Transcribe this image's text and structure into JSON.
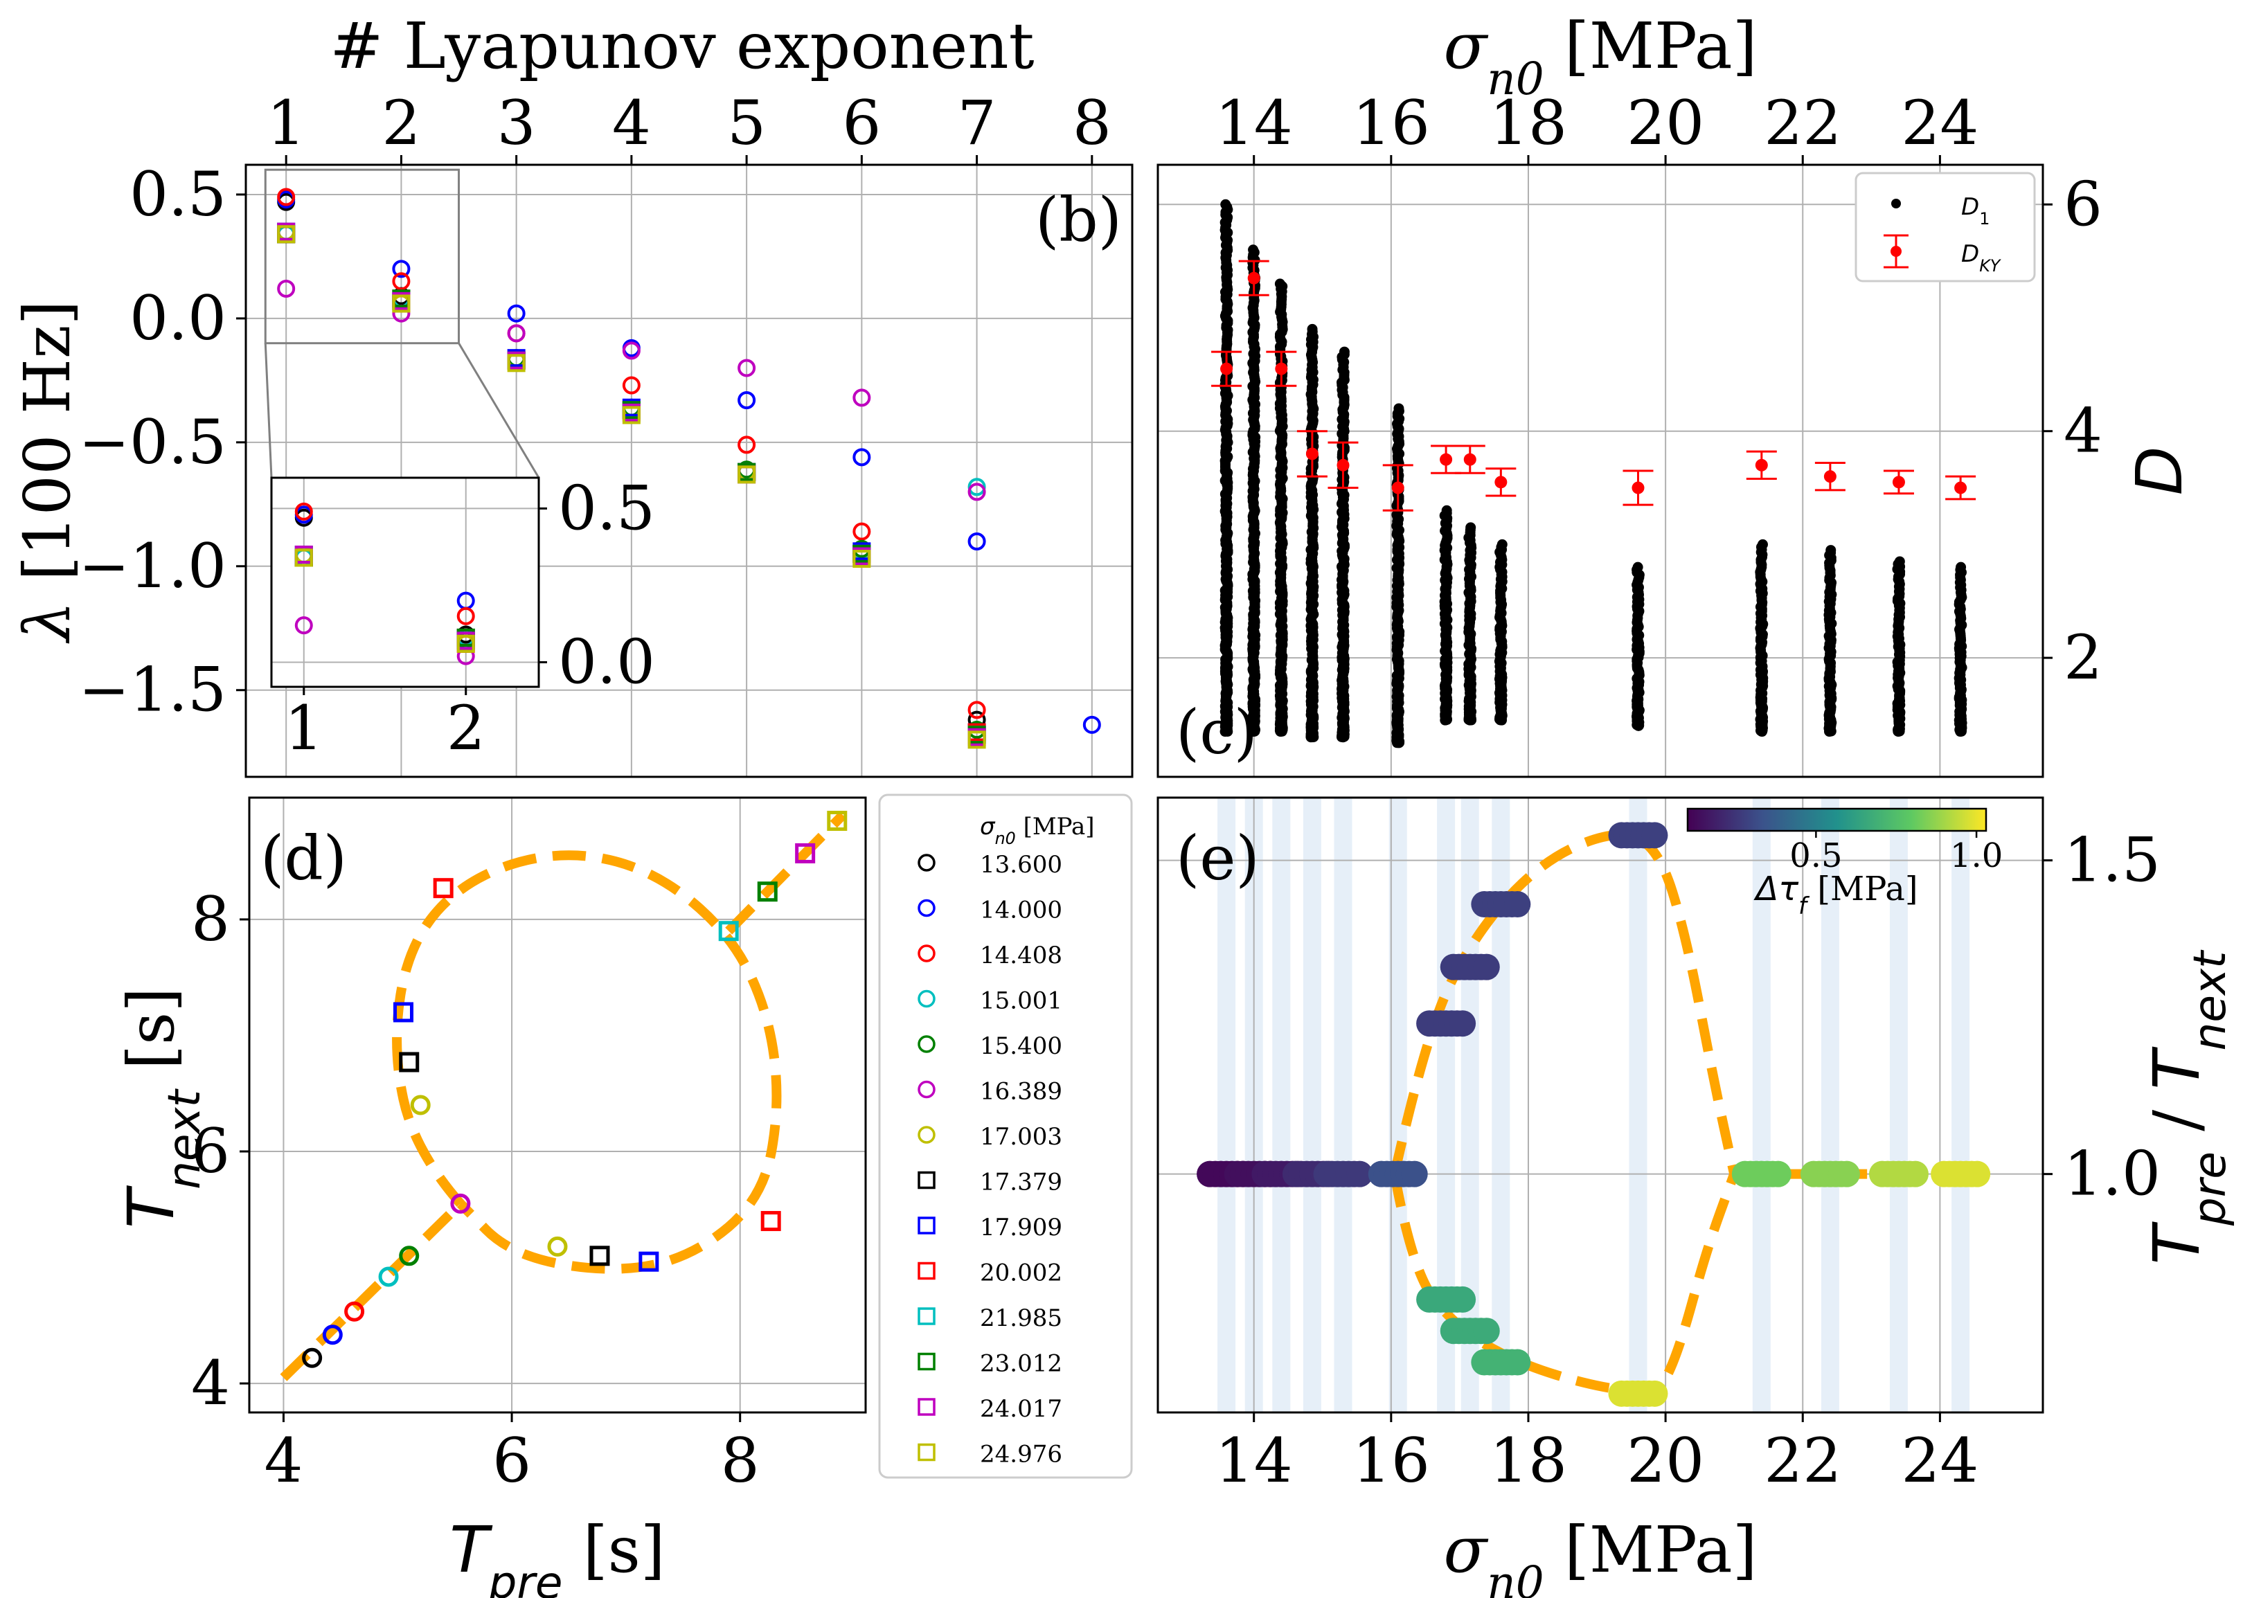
{
  "chart_data": [
    {
      "type": "scatter",
      "panel": "(b)",
      "top_xlabel": "# Lyapunov exponent",
      "ylabel": "λ [100 Hz]",
      "x_ticks": [
        1,
        2,
        3,
        4,
        5,
        6,
        7,
        8
      ],
      "xlim": [
        0.65,
        8.35
      ],
      "y_ticks": [
        0.5,
        0.0,
        -0.5,
        -1.0,
        -1.5
      ],
      "y_tick_labels": [
        "0.5",
        "0.0",
        "−0.5",
        "−1.0",
        "−1.5"
      ],
      "ylim": [
        -1.85,
        0.62
      ],
      "grid": true,
      "series": [
        {
          "name": "13.600",
          "color": "#000000",
          "marker": "circle",
          "values": [
            0.47,
            0.09,
            -0.17,
            -0.37,
            -0.62,
            -0.95,
            -1.62
          ]
        },
        {
          "name": "14.000",
          "color": "#0000ff",
          "marker": "circle",
          "values": [
            0.48,
            0.2,
            0.02,
            -0.12,
            -0.33,
            -0.56,
            -0.9,
            -1.64
          ]
        },
        {
          "name": "14.408",
          "color": "#ff0000",
          "marker": "circle",
          "values": [
            0.49,
            0.15,
            -0.06,
            -0.27,
            -0.51,
            -0.86,
            -1.58
          ]
        },
        {
          "name": "15.001",
          "color": "#00bfbf",
          "marker": "circle",
          "values": [
            0.34,
            0.08,
            -0.17,
            -0.36,
            -0.62,
            -0.94,
            -0.68
          ]
        },
        {
          "name": "15.400",
          "color": "#008000",
          "marker": "circle",
          "values": [
            0.35,
            0.07,
            -0.16,
            -0.36,
            -0.61,
            -0.93,
            -1.66
          ]
        },
        {
          "name": "16.389",
          "color": "#bf00bf",
          "marker": "circle",
          "values": [
            0.12,
            0.02,
            -0.06,
            -0.13,
            -0.2,
            -0.32,
            -0.7
          ]
        },
        {
          "name": "17.003",
          "color": "#bfbf00",
          "marker": "circle",
          "values": [
            0.35,
            0.06,
            -0.17,
            -0.37,
            -0.62,
            -0.95,
            -1.69
          ]
        },
        {
          "name": "17.379",
          "color": "#000000",
          "marker": "square",
          "values": [
            0.34,
            0.08,
            -0.17,
            -0.37,
            -0.62,
            -0.95,
            -1.68
          ]
        },
        {
          "name": "17.909",
          "color": "#0000ff",
          "marker": "square",
          "values": [
            0.35,
            0.07,
            -0.16,
            -0.36,
            -0.62,
            -0.94,
            -1.67
          ]
        },
        {
          "name": "20.002",
          "color": "#ff0000",
          "marker": "square",
          "values": [
            0.34,
            0.06,
            -0.17,
            -0.37,
            -0.62,
            -0.95,
            -1.67
          ]
        },
        {
          "name": "21.985",
          "color": "#00bfbf",
          "marker": "square",
          "values": [
            0.35,
            0.07,
            -0.17,
            -0.37,
            -0.62,
            -0.95,
            -1.68
          ]
        },
        {
          "name": "23.012",
          "color": "#008000",
          "marker": "square",
          "values": [
            0.34,
            0.08,
            -0.17,
            -0.37,
            -0.62,
            -0.95,
            -1.68
          ]
        },
        {
          "name": "24.017",
          "color": "#bf00bf",
          "marker": "square",
          "values": [
            0.35,
            0.07,
            -0.17,
            -0.38,
            -0.63,
            -0.96,
            -1.69
          ]
        },
        {
          "name": "24.976",
          "color": "#bfbf00",
          "marker": "square",
          "values": [
            0.34,
            0.06,
            -0.18,
            -0.39,
            -0.63,
            -0.97,
            -1.7
          ]
        }
      ],
      "inset": {
        "x_ticks": [
          1,
          2
        ],
        "xlim": [
          0.8,
          2.45
        ],
        "y_ticks": [
          0.5,
          0.0
        ],
        "y_tick_labels": [
          "0.5",
          "0.0"
        ],
        "ylim": [
          -0.08,
          0.6
        ],
        "source_box": {
          "x": [
            0.82,
            2.5
          ],
          "y": [
            -0.1,
            0.6
          ]
        }
      }
    },
    {
      "type": "scatter",
      "panel": "(c)",
      "top_xlabel": "σ_n0 [MPa]",
      "xlabel_symbol": "σ",
      "xlabel_subscript": "n0",
      "xlabel_unit": " [MPa]",
      "ylabel": "D",
      "x_ticks": [
        14,
        16,
        18,
        20,
        22,
        24
      ],
      "xlim": [
        12.6,
        25.5
      ],
      "y_ticks": [
        6,
        4,
        2
      ],
      "ylim": [
        0.95,
        6.35
      ],
      "grid": true,
      "legend_placement": "top-right",
      "series": [
        {
          "name": "D",
          "subscript": "1",
          "color": "#000000",
          "marker": "dot",
          "columns": [
            {
              "x": 13.6,
              "ymin": 1.35,
              "ymax": 6.0
            },
            {
              "x": 14.0,
              "ymin": 1.35,
              "ymax": 5.6
            },
            {
              "x": 14.4,
              "ymin": 1.35,
              "ymax": 5.3
            },
            {
              "x": 14.85,
              "ymin": 1.3,
              "ymax": 4.9
            },
            {
              "x": 15.3,
              "ymin": 1.3,
              "ymax": 4.7
            },
            {
              "x": 16.1,
              "ymin": 1.25,
              "ymax": 4.2
            },
            {
              "x": 16.8,
              "ymin": 1.45,
              "ymax": 3.3
            },
            {
              "x": 17.15,
              "ymin": 1.45,
              "ymax": 3.15
            },
            {
              "x": 17.6,
              "ymin": 1.45,
              "ymax": 3.0
            },
            {
              "x": 19.6,
              "ymin": 1.4,
              "ymax": 2.8
            },
            {
              "x": 21.4,
              "ymin": 1.35,
              "ymax": 3.0
            },
            {
              "x": 22.4,
              "ymin": 1.35,
              "ymax": 2.95
            },
            {
              "x": 23.4,
              "ymin": 1.35,
              "ymax": 2.85
            },
            {
              "x": 24.3,
              "ymin": 1.35,
              "ymax": 2.8
            }
          ]
        },
        {
          "name": "D",
          "subscript": "KY",
          "color": "#ff0000",
          "marker": "errorbar",
          "points": [
            {
              "x": 13.6,
              "y": 4.55,
              "err": 0.15
            },
            {
              "x": 14.0,
              "y": 5.35,
              "err": 0.15
            },
            {
              "x": 14.4,
              "y": 4.55,
              "err": 0.15
            },
            {
              "x": 14.85,
              "y": 3.8,
              "err": 0.2
            },
            {
              "x": 15.3,
              "y": 3.7,
              "err": 0.2
            },
            {
              "x": 16.1,
              "y": 3.5,
              "err": 0.2
            },
            {
              "x": 16.8,
              "y": 3.75,
              "err": 0.12
            },
            {
              "x": 17.15,
              "y": 3.75,
              "err": 0.12
            },
            {
              "x": 17.6,
              "y": 3.55,
              "err": 0.12
            },
            {
              "x": 19.6,
              "y": 3.5,
              "err": 0.15
            },
            {
              "x": 21.4,
              "y": 3.7,
              "err": 0.12
            },
            {
              "x": 22.4,
              "y": 3.6,
              "err": 0.12
            },
            {
              "x": 23.4,
              "y": 3.55,
              "err": 0.1
            },
            {
              "x": 24.3,
              "y": 3.5,
              "err": 0.1
            }
          ]
        }
      ]
    },
    {
      "type": "scatter",
      "panel": "(d)",
      "xlabel_symbol": "T",
      "xlabel_subscript": "pre",
      "xlabel_unit": " [s]",
      "ylabel_symbol": "T",
      "ylabel_subscript": "next",
      "ylabel_unit": " [s]",
      "x_ticks": [
        4,
        6,
        8
      ],
      "xlim": [
        3.7,
        9.1
      ],
      "y_ticks": [
        4,
        6,
        8
      ],
      "ylim": [
        3.75,
        9.05
      ],
      "grid": true,
      "legend_title": "σ_n0 [MPa]",
      "legend_title_symbol": "σ",
      "legend_title_subscript": "n0",
      "legend_title_unit": " [MPa]",
      "legend_placement": "outside-right",
      "series": [
        {
          "name": "13.600",
          "color": "#000000",
          "marker": "circle",
          "x": 4.25,
          "y": 4.22
        },
        {
          "name": "14.000",
          "color": "#0000ff",
          "marker": "circle",
          "x": 4.43,
          "y": 4.42
        },
        {
          "name": "14.408",
          "color": "#ff0000",
          "marker": "circle",
          "x": 4.62,
          "y": 4.62
        },
        {
          "name": "15.001",
          "color": "#00bfbf",
          "marker": "circle",
          "x": 4.92,
          "y": 4.92
        },
        {
          "name": "15.400",
          "color": "#008000",
          "marker": "circle",
          "x": 5.1,
          "y": 5.1
        },
        {
          "name": "16.389",
          "color": "#bf00bf",
          "marker": "circle",
          "x": 5.55,
          "y": 5.55
        },
        {
          "name": "17.003",
          "color": "#bfbf00",
          "marker": "circle",
          "x": [
            5.2,
            6.4
          ],
          "y": [
            6.4,
            5.18
          ]
        },
        {
          "name": "17.379",
          "color": "#000000",
          "marker": "square",
          "x": [
            5.1,
            6.77
          ],
          "y": [
            6.77,
            5.1
          ]
        },
        {
          "name": "17.909",
          "color": "#0000ff",
          "marker": "square",
          "x": [
            5.05,
            7.2
          ],
          "y": [
            7.2,
            5.05
          ]
        },
        {
          "name": "20.002",
          "color": "#ff0000",
          "marker": "square",
          "x": [
            5.4,
            8.27
          ],
          "y": [
            8.27,
            5.4
          ]
        },
        {
          "name": "21.985",
          "color": "#00bfbf",
          "marker": "square",
          "x": 7.9,
          "y": 7.9
        },
        {
          "name": "23.012",
          "color": "#008000",
          "marker": "square",
          "x": 8.24,
          "y": 8.24
        },
        {
          "name": "24.017",
          "color": "#bf00bf",
          "marker": "square",
          "x": 8.57,
          "y": 8.57
        },
        {
          "name": "24.976",
          "color": "#bfbf00",
          "marker": "square",
          "x": 8.85,
          "y": 8.85
        }
      ]
    },
    {
      "type": "scatter",
      "panel": "(e)",
      "xlabel_symbol": "σ",
      "xlabel_subscript": "n0",
      "xlabel_unit": " [MPa]",
      "ylabel_parts": [
        "T",
        "pre",
        " / ",
        "T",
        "next"
      ],
      "x_ticks": [
        14,
        16,
        18,
        20,
        22,
        24
      ],
      "xlim": [
        12.6,
        25.5
      ],
      "y_ticks": [
        1.5,
        1.0
      ],
      "y_tick_labels": [
        "1.5",
        "1.0"
      ],
      "ylim": [
        0.62,
        1.6
      ],
      "grid": true,
      "colorbar": {
        "label_symbol": "Δτ",
        "label_subscript": "f",
        "label_unit": " [MPa]",
        "ticks": [
          "0.5",
          "1.0"
        ],
        "tick_values": [
          0.5,
          1.0
        ],
        "range": [
          0.1,
          1.03
        ],
        "placement": "top-right"
      },
      "shaded_bands_x": [
        13.6,
        14.0,
        14.4,
        14.85,
        15.3,
        16.1,
        16.8,
        17.15,
        17.6,
        19.6,
        21.4,
        22.4,
        23.4,
        24.3
      ],
      "points": [
        {
          "x": 13.6,
          "y": 1.0,
          "c": 0.12
        },
        {
          "x": 14.0,
          "y": 1.0,
          "c": 0.14
        },
        {
          "x": 14.4,
          "y": 1.0,
          "c": 0.17
        },
        {
          "x": 14.85,
          "y": 1.0,
          "c": 0.22
        },
        {
          "x": 15.3,
          "y": 1.0,
          "c": 0.26
        },
        {
          "x": 16.1,
          "y": 1.0,
          "c": 0.33
        },
        {
          "x": 16.8,
          "y": 1.24,
          "c": 0.27
        },
        {
          "x": 17.15,
          "y": 1.33,
          "c": 0.27
        },
        {
          "x": 17.6,
          "y": 1.43,
          "c": 0.28
        },
        {
          "x": 19.6,
          "y": 1.54,
          "c": 0.28
        },
        {
          "x": 16.8,
          "y": 0.8,
          "c": 0.66
        },
        {
          "x": 17.15,
          "y": 0.75,
          "c": 0.67
        },
        {
          "x": 17.6,
          "y": 0.7,
          "c": 0.7
        },
        {
          "x": 19.6,
          "y": 0.65,
          "c": 0.98
        },
        {
          "x": 21.4,
          "y": 1.0,
          "c": 0.82
        },
        {
          "x": 22.4,
          "y": 1.0,
          "c": 0.86
        },
        {
          "x": 23.4,
          "y": 1.0,
          "c": 0.92
        },
        {
          "x": 24.3,
          "y": 1.0,
          "c": 0.98
        }
      ]
    }
  ]
}
